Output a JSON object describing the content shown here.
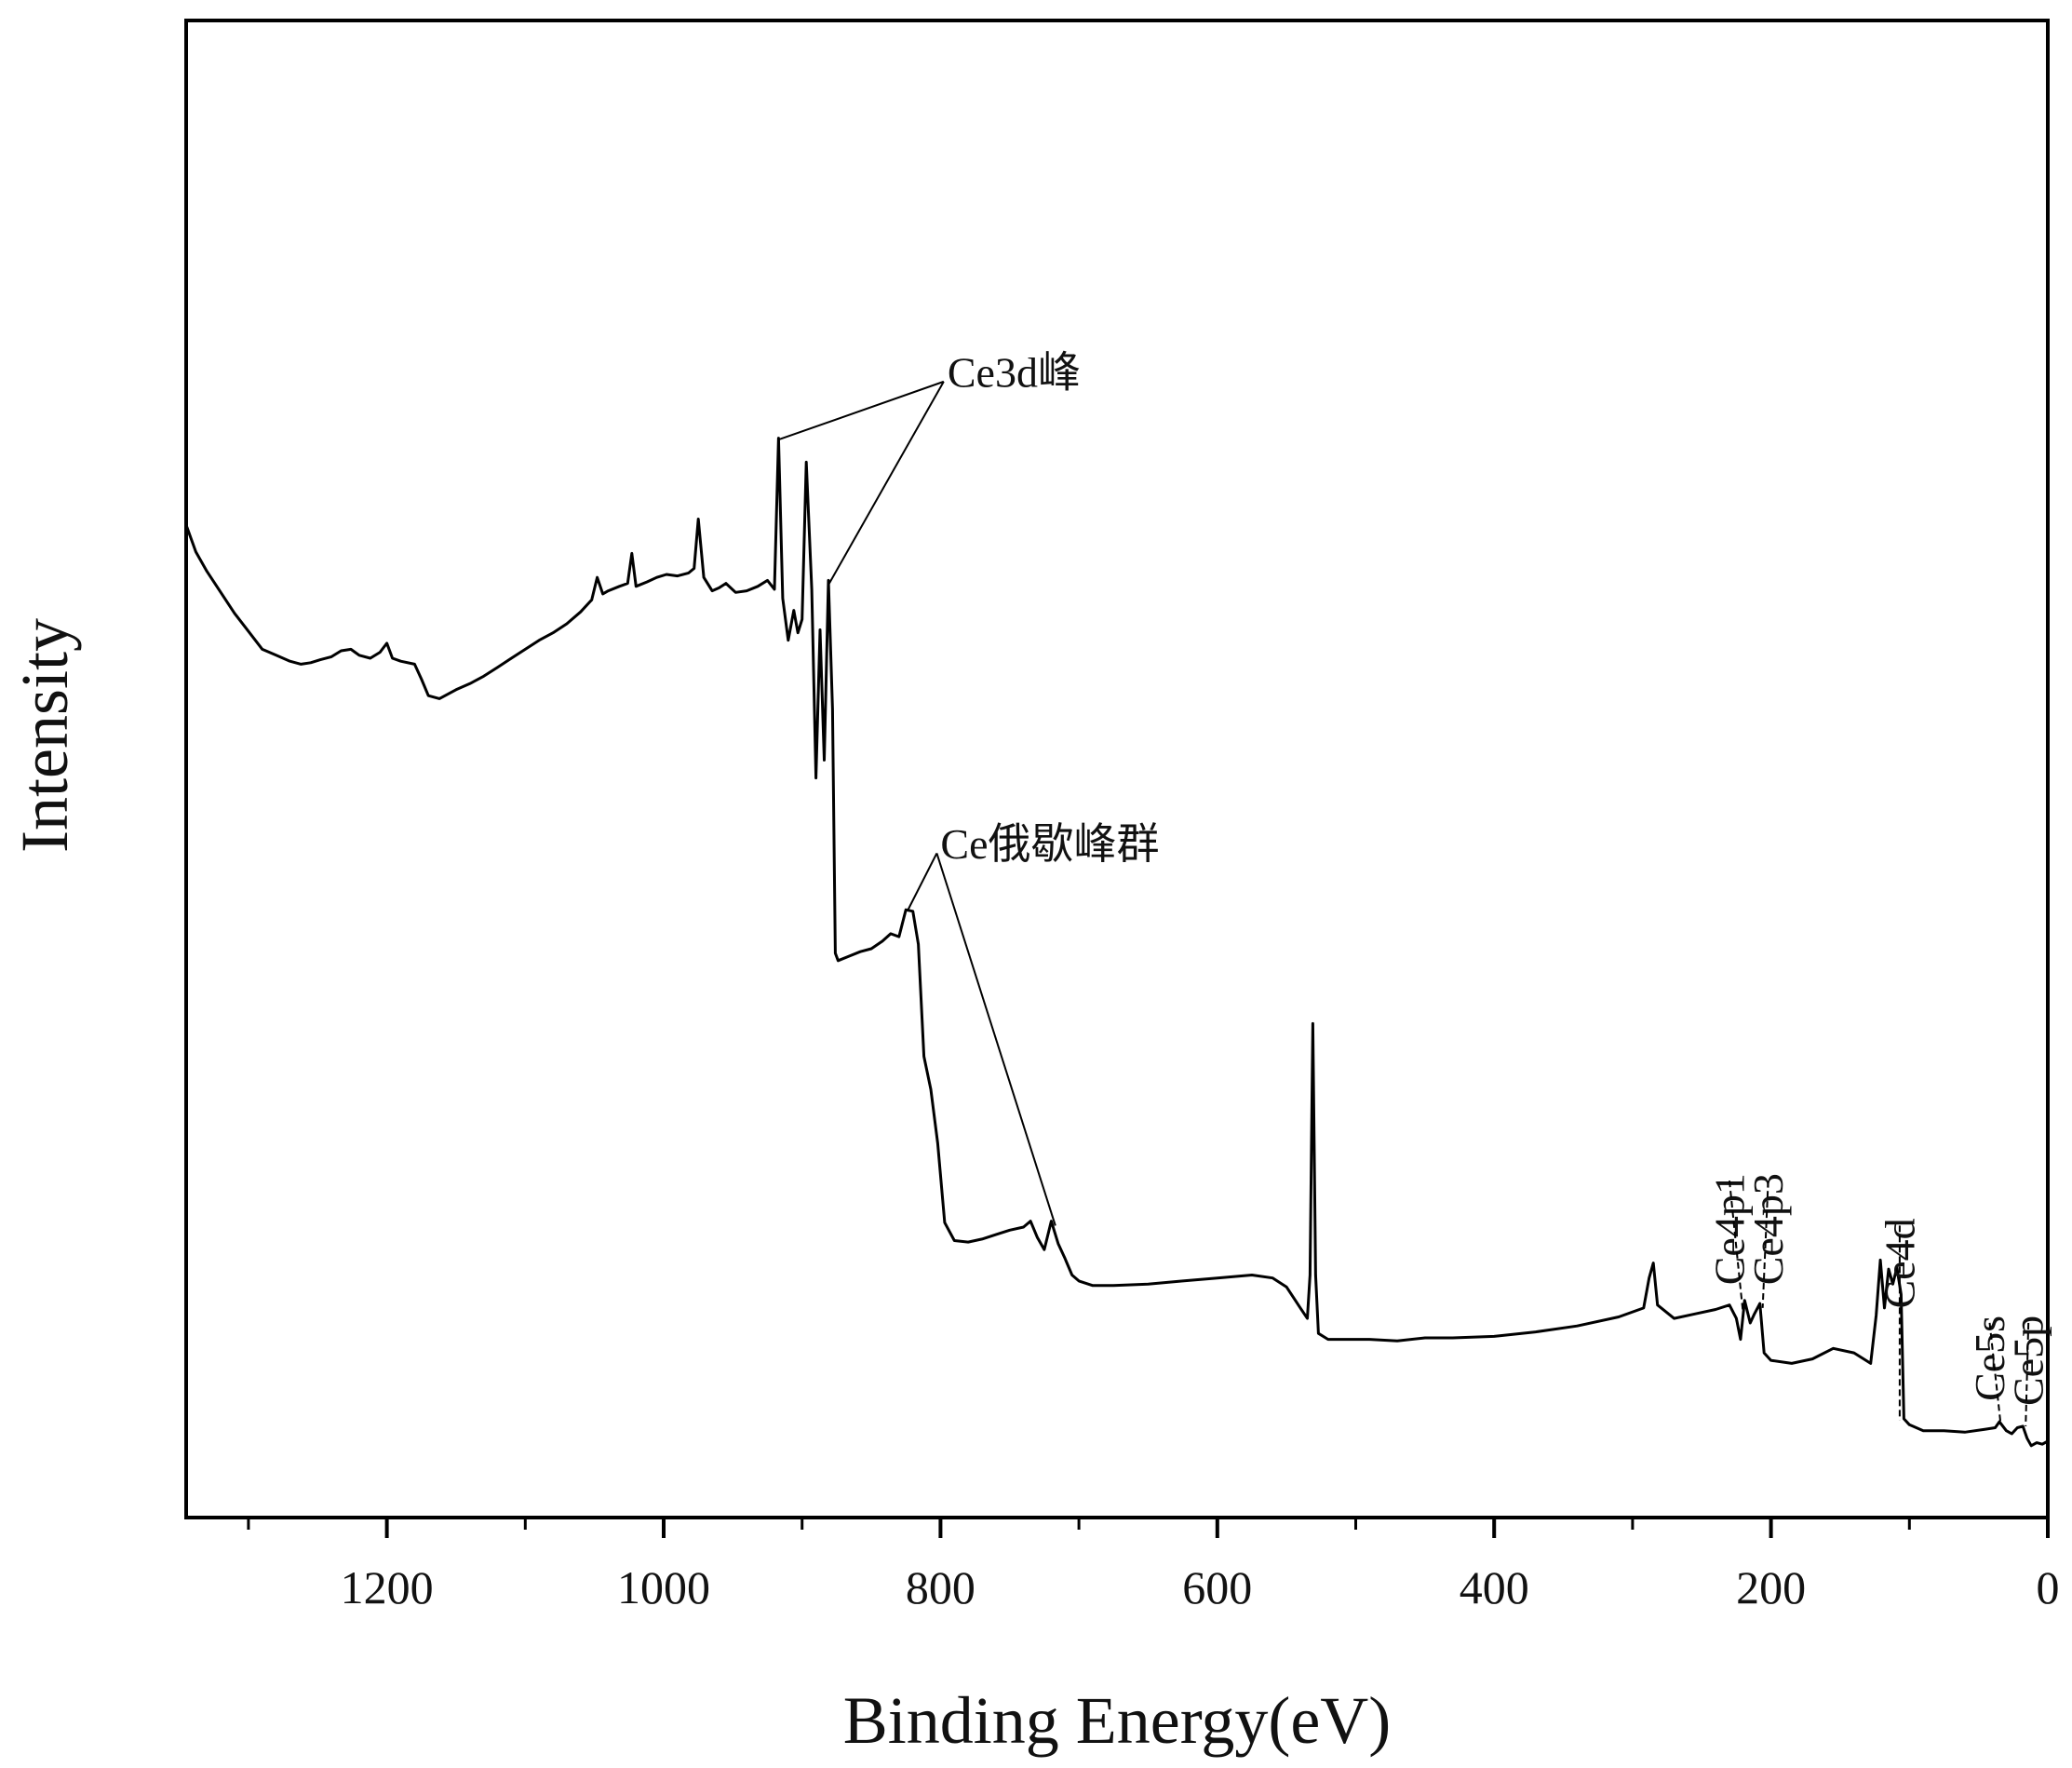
{
  "chart_data": {
    "type": "line",
    "xlabel": "Binding Energy(eV)",
    "ylabel": "Intensity",
    "x_reversed": true,
    "xlim": [
      1345,
      0
    ],
    "ylim": [
      0,
      100
    ],
    "grid": false,
    "x_ticks": [
      {
        "value": 1200,
        "label": "1200"
      },
      {
        "value": 1000,
        "label": "1000"
      },
      {
        "value": 800,
        "label": "800"
      },
      {
        "value": 600,
        "label": "600"
      },
      {
        "value": 400,
        "label": "400"
      },
      {
        "value": 200,
        "label": "200"
      },
      {
        "value": 0,
        "label": "0"
      }
    ],
    "x_minor_ticks": [
      1300,
      1100,
      900,
      700,
      500,
      300,
      100
    ],
    "series": [
      {
        "color": "#000000",
        "points": [
          [
            1345,
            66.3
          ],
          [
            1338,
            64.5
          ],
          [
            1330,
            63.2
          ],
          [
            1320,
            61.8
          ],
          [
            1310,
            60.4
          ],
          [
            1300,
            59.2
          ],
          [
            1290,
            58.0
          ],
          [
            1280,
            57.6
          ],
          [
            1270,
            57.2
          ],
          [
            1262,
            57.0
          ],
          [
            1255,
            57.1
          ],
          [
            1248,
            57.3
          ],
          [
            1240,
            57.5
          ],
          [
            1233,
            57.9
          ],
          [
            1226,
            58.0
          ],
          [
            1220,
            57.6
          ],
          [
            1212,
            57.4
          ],
          [
            1205,
            57.8
          ],
          [
            1200,
            58.4
          ],
          [
            1196,
            57.4
          ],
          [
            1190,
            57.2
          ],
          [
            1180,
            57.0
          ],
          [
            1175,
            56.0
          ],
          [
            1170,
            54.9
          ],
          [
            1162,
            54.7
          ],
          [
            1150,
            55.3
          ],
          [
            1140,
            55.7
          ],
          [
            1130,
            56.2
          ],
          [
            1120,
            56.8
          ],
          [
            1110,
            57.4
          ],
          [
            1100,
            58.0
          ],
          [
            1090,
            58.6
          ],
          [
            1080,
            59.1
          ],
          [
            1070,
            59.7
          ],
          [
            1060,
            60.5
          ],
          [
            1052,
            61.3
          ],
          [
            1048,
            62.8
          ],
          [
            1044,
            61.7
          ],
          [
            1040,
            61.9
          ],
          [
            1032,
            62.2
          ],
          [
            1026,
            62.4
          ],
          [
            1023,
            64.4
          ],
          [
            1020,
            62.2
          ],
          [
            1012,
            62.5
          ],
          [
            1005,
            62.8
          ],
          [
            998,
            63.0
          ],
          [
            990,
            62.9
          ],
          [
            982,
            63.1
          ],
          [
            978,
            63.4
          ],
          [
            975,
            66.7
          ],
          [
            971,
            62.8
          ],
          [
            965,
            61.9
          ],
          [
            960,
            62.1
          ],
          [
            955,
            62.4
          ],
          [
            948,
            61.8
          ],
          [
            940,
            61.9
          ],
          [
            932,
            62.2
          ],
          [
            925,
            62.6
          ],
          [
            920,
            62.0
          ],
          [
            917,
            72.1
          ],
          [
            914,
            61.4
          ],
          [
            910,
            58.6
          ],
          [
            906,
            60.6
          ],
          [
            903,
            59.1
          ],
          [
            900,
            60.0
          ],
          [
            897,
            70.5
          ],
          [
            893,
            62.0
          ],
          [
            890,
            49.4
          ],
          [
            887,
            59.3
          ],
          [
            884,
            50.6
          ],
          [
            881,
            62.6
          ],
          [
            878,
            54.0
          ],
          [
            876,
            37.7
          ],
          [
            874,
            37.2
          ],
          [
            866,
            37.5
          ],
          [
            858,
            37.8
          ],
          [
            850,
            38.0
          ],
          [
            842,
            38.5
          ],
          [
            836,
            39.0
          ],
          [
            830,
            38.8
          ],
          [
            825,
            40.6
          ],
          [
            820,
            40.5
          ],
          [
            816,
            38.3
          ],
          [
            812,
            30.8
          ],
          [
            807,
            28.6
          ],
          [
            802,
            25.0
          ],
          [
            797,
            19.7
          ],
          [
            790,
            18.5
          ],
          [
            780,
            18.4
          ],
          [
            770,
            18.6
          ],
          [
            760,
            18.9
          ],
          [
            750,
            19.2
          ],
          [
            740,
            19.4
          ],
          [
            735,
            19.8
          ],
          [
            730,
            18.7
          ],
          [
            725,
            17.9
          ],
          [
            720,
            19.8
          ],
          [
            715,
            18.3
          ],
          [
            710,
            17.3
          ],
          [
            705,
            16.2
          ],
          [
            700,
            15.8
          ],
          [
            690,
            15.5
          ],
          [
            675,
            15.5
          ],
          [
            650,
            15.6
          ],
          [
            625,
            15.8
          ],
          [
            600,
            16.0
          ],
          [
            575,
            16.2
          ],
          [
            560,
            16.0
          ],
          [
            550,
            15.4
          ],
          [
            540,
            14.0
          ],
          [
            535,
            13.3
          ],
          [
            533,
            16.2
          ],
          [
            531,
            33.0
          ],
          [
            529,
            16.2
          ],
          [
            527,
            12.3
          ],
          [
            520,
            11.9
          ],
          [
            505,
            11.9
          ],
          [
            490,
            11.9
          ],
          [
            470,
            11.8
          ],
          [
            450,
            12.0
          ],
          [
            430,
            12.0
          ],
          [
            400,
            12.1
          ],
          [
            370,
            12.4
          ],
          [
            340,
            12.8
          ],
          [
            310,
            13.4
          ],
          [
            292,
            14.0
          ],
          [
            288,
            16.0
          ],
          [
            285,
            17.0
          ],
          [
            282,
            14.2
          ],
          [
            270,
            13.3
          ],
          [
            255,
            13.6
          ],
          [
            240,
            13.9
          ],
          [
            230,
            14.2
          ],
          [
            225,
            13.3
          ],
          [
            222,
            11.9
          ],
          [
            219,
            14.5
          ],
          [
            215,
            13.0
          ],
          [
            212,
            13.6
          ],
          [
            208,
            14.3
          ],
          [
            205,
            11.0
          ],
          [
            200,
            10.5
          ],
          [
            185,
            10.3
          ],
          [
            170,
            10.6
          ],
          [
            155,
            11.3
          ],
          [
            140,
            11.0
          ],
          [
            128,
            10.3
          ],
          [
            124,
            13.5
          ],
          [
            121,
            17.2
          ],
          [
            118,
            14.0
          ],
          [
            115,
            16.6
          ],
          [
            112,
            15.6
          ],
          [
            109,
            16.7
          ],
          [
            106,
            14.9
          ],
          [
            104,
            6.6
          ],
          [
            100,
            6.2
          ],
          [
            90,
            5.8
          ],
          [
            75,
            5.8
          ],
          [
            60,
            5.7
          ],
          [
            45,
            5.9
          ],
          [
            38,
            6.0
          ],
          [
            35,
            6.4
          ],
          [
            30,
            5.8
          ],
          [
            26,
            5.6
          ],
          [
            22,
            6.0
          ],
          [
            18,
            6.1
          ],
          [
            15,
            5.3
          ],
          [
            12,
            4.8
          ],
          [
            8,
            5.0
          ],
          [
            4,
            4.9
          ],
          [
            0,
            5.1
          ]
        ]
      }
    ],
    "annotations": [
      {
        "text": "Ce3d峰",
        "orientation": "horizontal",
        "label_x": 795,
        "label_y": 76.5,
        "leaders": [
          [
            917,
            72.0
          ],
          [
            881,
            62.3
          ]
        ]
      },
      {
        "text": "Ce俄歇峰群",
        "orientation": "horizontal",
        "label_x": 800,
        "label_y": 45.0,
        "leaders": [
          [
            824,
            40.5
          ],
          [
            717,
            19.5
          ]
        ]
      },
      {
        "text": "Ce4p1",
        "orientation": "vertical",
        "label_x": 230,
        "label_y": 23.0,
        "leaders": [
          [
            220,
            13.5
          ]
        ]
      },
      {
        "text": "Ce4p3",
        "orientation": "vertical",
        "label_x": 202,
        "label_y": 23.0,
        "leaders": [
          [
            206,
            14.0
          ]
        ]
      },
      {
        "text": "Ce4d",
        "orientation": "vertical",
        "label_x": 107,
        "label_y": 20.0,
        "leaders": [
          [
            107,
            6.5
          ]
        ]
      },
      {
        "text": "Ce5s",
        "orientation": "vertical",
        "label_x": 42,
        "label_y": 13.5,
        "leaders": [
          [
            34,
            6.2
          ]
        ]
      },
      {
        "text": "Ce5p",
        "orientation": "vertical",
        "label_x": 14,
        "label_y": 13.5,
        "leaders": [
          [
            16,
            6.1
          ]
        ]
      }
    ]
  }
}
